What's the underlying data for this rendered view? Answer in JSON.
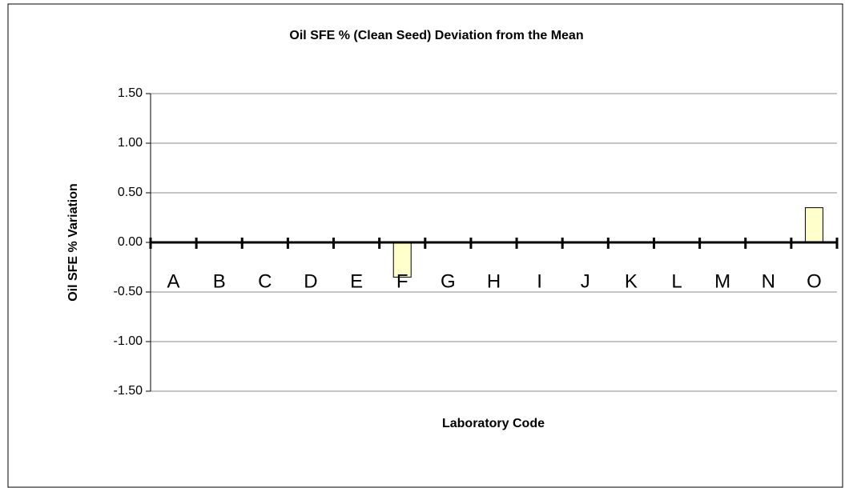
{
  "chart_data": {
    "type": "bar",
    "title": "Oil SFE % (Clean Seed) Deviation from the Mean",
    "y_label": "Oil SFE % Variation",
    "x_label": "Laboratory Code",
    "categories": [
      "A",
      "B",
      "C",
      "D",
      "E",
      "F",
      "G",
      "H",
      "I",
      "J",
      "K",
      "L",
      "M",
      "N",
      "O"
    ],
    "values": [
      0,
      0,
      0,
      0,
      0,
      -0.35,
      0,
      0,
      0,
      0,
      0,
      0,
      0,
      0,
      0.35
    ],
    "color": "#ffffcc",
    "ylim": [
      -1.5,
      1.5
    ],
    "yticks": [
      {
        "value": -1.5,
        "label": "-1.50"
      },
      {
        "value": -1,
        "label": "-1.00"
      },
      {
        "value": -0.5,
        "label": "-0.50"
      },
      {
        "value": 0,
        "label": "0.00"
      },
      {
        "value": 0.5,
        "label": "0.50"
      },
      {
        "value": 1,
        "label": "1.00"
      },
      {
        "value": 1.5,
        "label": "1.50"
      }
    ],
    "grid": true
  }
}
